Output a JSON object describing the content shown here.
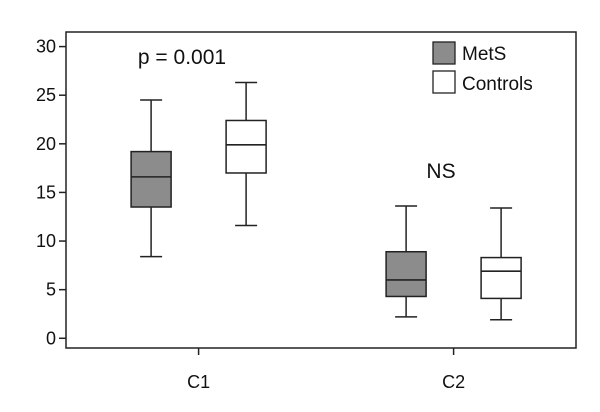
{
  "chart_data": {
    "type": "box",
    "categories": [
      "C1",
      "C2"
    ],
    "series": [
      {
        "name": "MetS",
        "color": "#8c8c8c",
        "boxes": [
          {
            "whisker_low": 8.4,
            "q1": 13.5,
            "median": 16.6,
            "q3": 19.2,
            "whisker_high": 24.5
          },
          {
            "whisker_low": 2.2,
            "q1": 4.3,
            "median": 6.0,
            "q3": 8.9,
            "whisker_high": 13.6
          }
        ]
      },
      {
        "name": "Controls",
        "color": "#ffffff",
        "boxes": [
          {
            "whisker_low": 11.6,
            "q1": 17.0,
            "median": 19.9,
            "q3": 22.4,
            "whisker_high": 26.3
          },
          {
            "whisker_low": 1.9,
            "q1": 4.1,
            "median": 6.9,
            "q3": 8.3,
            "whisker_high": 13.4
          }
        ]
      }
    ],
    "yticks": [
      "0",
      "5",
      "10",
      "15",
      "20",
      "25",
      "30"
    ],
    "ylim": [
      -1,
      31.5
    ],
    "annotations": [
      {
        "text": "p = 0.001",
        "category": "C1"
      },
      {
        "text": "NS",
        "category": "C2"
      }
    ],
    "legend_placement": "top-right",
    "grid": false
  }
}
